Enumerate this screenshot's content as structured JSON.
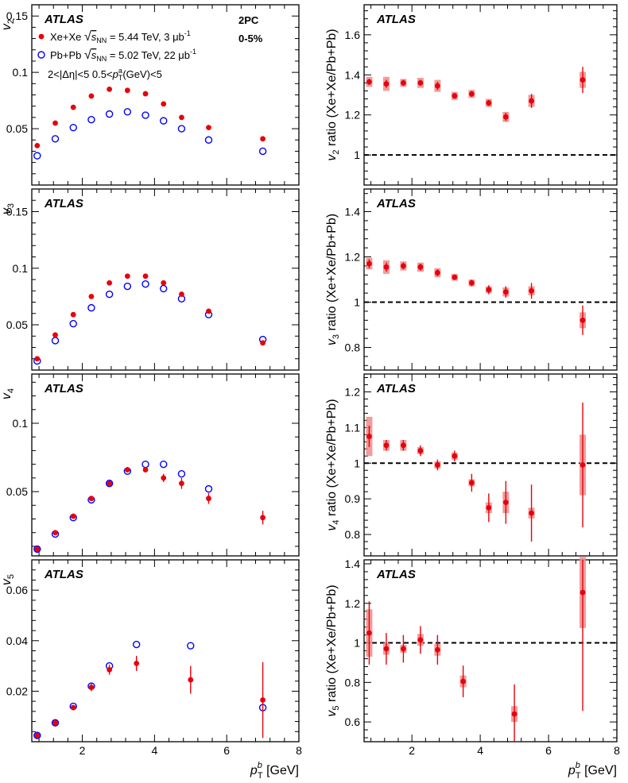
{
  "figure": {
    "atlas_label": "ATLAS",
    "method_label": "2PC",
    "centrality": "0-5%",
    "eta_cut": "2<|Δη|<5",
    "pta_cut_pre": "0.5<",
    "pta_symbol": "p",
    "pta_sub": "T",
    "pta_sup": "a",
    "pta_cut_post": "(GeV)<5",
    "legend": [
      {
        "pre": "Xe+Xe ",
        "sqrt": "√",
        "s": "s",
        "sub": "NN",
        "post": " = 5.44 TeV, 3 μb",
        "sup": "-1"
      },
      {
        "pre": "Pb+Pb ",
        "sqrt": "√",
        "s": "s",
        "sub": "NN",
        "post": " = 5.02 TeV, 22 μb",
        "sup": "-1"
      }
    ],
    "xaxis": {
      "symbol": "p",
      "sub": "T",
      "sup": "b",
      "unit": " [GeV]",
      "ticks": [
        "2",
        "4",
        "6",
        "8"
      ]
    },
    "ratio_label": " ratio (Xe+Xe/Pb+Pb)"
  },
  "chart_data": [
    {
      "type": "scatter",
      "panel": "v2",
      "ylabel": "v2",
      "xlim": [
        0.6,
        8
      ],
      "ylim": [
        0,
        0.16
      ],
      "yticks": [
        "0.05",
        "0.1",
        "0.15"
      ],
      "x": [
        0.75,
        1.25,
        1.75,
        2.25,
        2.75,
        3.25,
        3.75,
        4.25,
        4.75,
        5.5,
        7.0
      ],
      "series": [
        {
          "name": "Xe+Xe",
          "color": "#e8000b",
          "marker": "filled-circle",
          "values": [
            0.035,
            0.055,
            0.069,
            0.079,
            0.085,
            0.084,
            0.081,
            0.072,
            0.06,
            0.051,
            0.041
          ]
        },
        {
          "name": "Pb+Pb",
          "color": "#0000ff",
          "marker": "open-circle",
          "values": [
            0.026,
            0.041,
            0.051,
            0.058,
            0.063,
            0.065,
            0.062,
            0.057,
            0.05,
            0.04,
            0.03
          ]
        }
      ]
    },
    {
      "type": "scatter",
      "panel": "v2_ratio",
      "ylabel": "v2 ratio (Xe+Xe/Pb+Pb)",
      "xlim": [
        0.6,
        8
      ],
      "ylim": [
        0.85,
        1.75
      ],
      "yticks": [
        "1",
        "1.2",
        "1.4",
        "1.6"
      ],
      "x": [
        0.75,
        1.25,
        1.75,
        2.25,
        2.75,
        3.25,
        3.75,
        4.25,
        4.75,
        5.5,
        7.0
      ],
      "values": [
        1.365,
        1.355,
        1.36,
        1.36,
        1.345,
        1.295,
        1.305,
        1.26,
        1.19,
        1.27,
        1.375
      ],
      "stat_err": [
        0.015,
        0.02,
        0.015,
        0.015,
        0.02,
        0.015,
        0.015,
        0.015,
        0.02,
        0.035,
        0.065
      ],
      "syst_err": [
        0.025,
        0.035,
        0.02,
        0.025,
        0.03,
        0.02,
        0.02,
        0.02,
        0.025,
        0.03,
        0.04
      ],
      "reference": 1
    },
    {
      "type": "scatter",
      "panel": "v3",
      "ylabel": "v3",
      "xlim": [
        0.6,
        8
      ],
      "ylim": [
        0.01,
        0.17
      ],
      "yticks": [
        "0.05",
        "0.1",
        "0.15"
      ],
      "x": [
        0.75,
        1.25,
        1.75,
        2.25,
        2.75,
        3.25,
        3.75,
        4.25,
        4.75,
        5.5,
        7.0
      ],
      "series": [
        {
          "name": "Xe+Xe",
          "color": "#e8000b",
          "marker": "filled-circle",
          "values": [
            0.02,
            0.041,
            0.059,
            0.075,
            0.087,
            0.093,
            0.093,
            0.087,
            0.077,
            0.062,
            0.034
          ]
        },
        {
          "name": "Pb+Pb",
          "color": "#0000ff",
          "marker": "open-circle",
          "values": [
            0.018,
            0.036,
            0.051,
            0.065,
            0.077,
            0.084,
            0.086,
            0.082,
            0.073,
            0.059,
            0.037
          ]
        }
      ]
    },
    {
      "type": "scatter",
      "panel": "v3_ratio",
      "ylabel": "v3 ratio (Xe+Xe/Pb+Pb)",
      "xlim": [
        0.6,
        8
      ],
      "ylim": [
        0.7,
        1.5
      ],
      "yticks": [
        "0.8",
        "1",
        "1.2",
        "1.4"
      ],
      "x": [
        0.75,
        1.25,
        1.75,
        2.25,
        2.75,
        3.25,
        3.75,
        4.25,
        4.75,
        5.5,
        7.0
      ],
      "values": [
        1.17,
        1.155,
        1.16,
        1.155,
        1.13,
        1.11,
        1.085,
        1.055,
        1.045,
        1.05,
        0.92
      ],
      "stat_err": [
        0.02,
        0.02,
        0.015,
        0.015,
        0.015,
        0.01,
        0.015,
        0.02,
        0.025,
        0.035,
        0.065
      ],
      "syst_err": [
        0.025,
        0.03,
        0.02,
        0.02,
        0.02,
        0.015,
        0.015,
        0.015,
        0.02,
        0.02,
        0.035
      ],
      "reference": 1
    },
    {
      "type": "scatter",
      "panel": "v4",
      "ylabel": "v4",
      "xlim": [
        0.6,
        8
      ],
      "ylim": [
        0.003,
        0.136
      ],
      "yticks": [
        "0.05",
        "0.1"
      ],
      "x": [
        0.75,
        1.25,
        1.75,
        2.25,
        2.75,
        3.25,
        3.75,
        4.25,
        4.75,
        5.5,
        7.0
      ],
      "series": [
        {
          "name": "Xe+Xe",
          "color": "#e8000b",
          "marker": "filled-circle",
          "values": [
            0.008,
            0.02,
            0.032,
            0.045,
            0.056,
            0.066,
            0.066,
            0.06,
            0.056,
            0.045,
            0.031
          ],
          "errors": [
            0.0005,
            0.001,
            0.001,
            0.0015,
            0.0015,
            0.002,
            0.002,
            0.003,
            0.004,
            0.004,
            0.005
          ]
        },
        {
          "name": "Pb+Pb",
          "color": "#0000ff",
          "marker": "open-circle",
          "values": [
            0.008,
            0.019,
            0.031,
            0.044,
            0.056,
            0.065,
            0.07,
            0.07,
            0.063,
            0.052,
            null
          ]
        }
      ]
    },
    {
      "type": "scatter",
      "panel": "v4_ratio",
      "ylabel": "v4 ratio (Xe+Xe/Pb+Pb)",
      "xlim": [
        0.6,
        8
      ],
      "ylim": [
        0.74,
        1.25
      ],
      "yticks": [
        "0.8",
        "0.9",
        "1",
        "1.1",
        "1.2"
      ],
      "x": [
        0.75,
        1.25,
        1.75,
        2.25,
        2.75,
        3.25,
        3.75,
        4.25,
        4.75,
        5.5,
        7.0
      ],
      "values": [
        1.075,
        1.05,
        1.05,
        1.035,
        0.995,
        1.02,
        0.945,
        0.875,
        0.89,
        0.86,
        0.995
      ],
      "stat_err": [
        0.03,
        0.015,
        0.015,
        0.015,
        0.015,
        0.015,
        0.025,
        0.04,
        0.06,
        0.08,
        0.175
      ],
      "syst_err": [
        0.055,
        0.015,
        0.015,
        0.01,
        0.01,
        0.01,
        0.01,
        0.015,
        0.03,
        0.015,
        0.085
      ],
      "reference": 1
    },
    {
      "type": "scatter",
      "panel": "v5",
      "ylabel": "v5",
      "xlim": [
        0.6,
        8
      ],
      "ylim": [
        0,
        0.072
      ],
      "yticks": [
        "0.02",
        "0.04",
        "0.06"
      ],
      "x_xexe": [
        0.75,
        1.25,
        1.75,
        2.25,
        2.75,
        3.5,
        5.0,
        7.0
      ],
      "x_pbpb": [
        0.75,
        1.25,
        1.75,
        2.25,
        2.75,
        3.5,
        5.0,
        7.0
      ],
      "series": [
        {
          "name": "Xe+Xe",
          "color": "#e8000b",
          "marker": "filled-circle",
          "values": [
            0.0025,
            0.0075,
            0.0135,
            0.0215,
            0.0285,
            0.031,
            0.0245,
            0.0165
          ],
          "errors": [
            0.0005,
            0.0005,
            0.001,
            0.0015,
            0.002,
            0.003,
            0.0055,
            0.015
          ]
        },
        {
          "name": "Pb+Pb",
          "color": "#0000ff",
          "marker": "open-circle",
          "values": [
            0.0025,
            0.0075,
            0.014,
            0.022,
            0.03,
            0.0385,
            0.038,
            0.0135
          ]
        }
      ]
    },
    {
      "type": "scatter",
      "panel": "v5_ratio",
      "ylabel": "v5 ratio (Xe+Xe/Pb+Pb)",
      "xlim": [
        0.6,
        8
      ],
      "ylim": [
        0.5,
        1.42
      ],
      "yticks": [
        "0.6",
        "0.8",
        "1",
        "1.2",
        "1.4"
      ],
      "x": [
        0.75,
        1.25,
        1.75,
        2.25,
        2.75,
        3.5,
        5.0,
        7.0
      ],
      "values": [
        1.05,
        0.97,
        0.97,
        1.015,
        0.965,
        0.805,
        0.64,
        1.255
      ],
      "stat_err": [
        0.16,
        0.08,
        0.07,
        0.07,
        0.075,
        0.08,
        0.15,
        0.6
      ],
      "syst_err": [
        0.12,
        0.03,
        0.02,
        0.03,
        0.03,
        0.03,
        0.04,
        0.18
      ],
      "reference": 1
    }
  ]
}
